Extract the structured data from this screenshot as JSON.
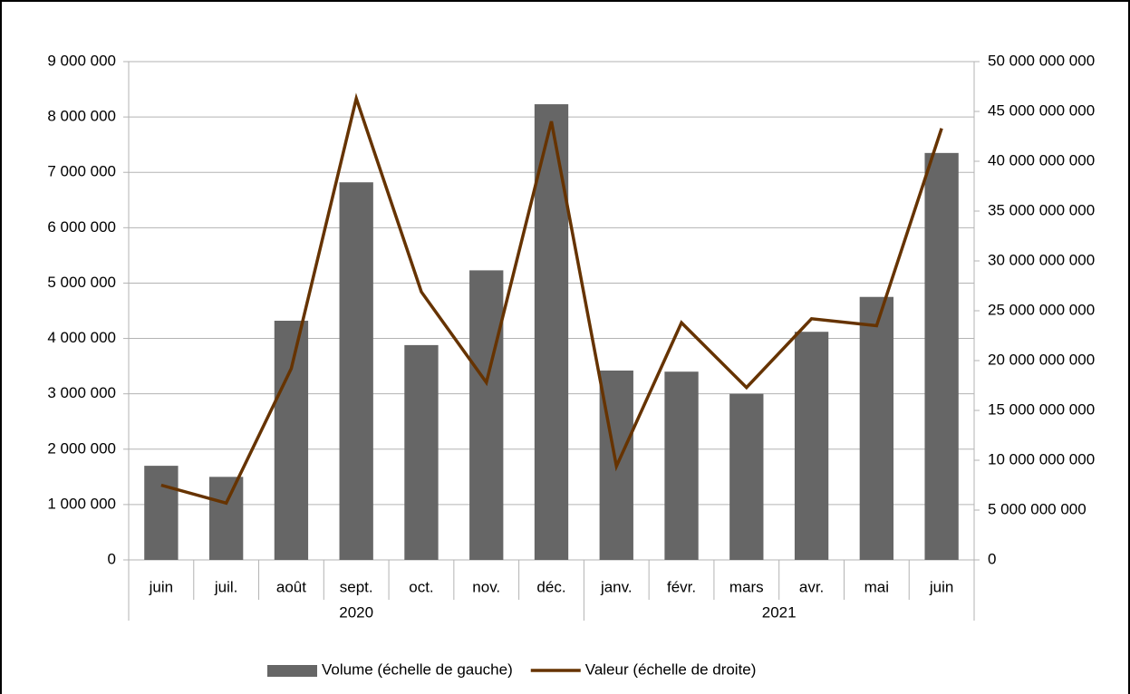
{
  "chart_data": {
    "type": "bar",
    "groups": [
      {
        "name": "2020",
        "categories": [
          "juin",
          "juil.",
          "août",
          "sept.",
          "oct.",
          "nov.",
          "déc."
        ]
      },
      {
        "name": "2021",
        "categories": [
          "janv.",
          "févr.",
          "mars",
          "avr.",
          "mai",
          "juin"
        ]
      }
    ],
    "series": [
      {
        "name": "Volume (échelle de gauche)",
        "type": "bar",
        "color": "#666666",
        "values": [
          1700000,
          1500000,
          4320000,
          6820000,
          3880000,
          5230000,
          8230000,
          3420000,
          3400000,
          3000000,
          4120000,
          4750000,
          7350000
        ]
      },
      {
        "name": "Valeur (échelle de droite)",
        "type": "line",
        "axis": "y2",
        "color": "#663300",
        "values": [
          7500000000,
          5700000000,
          19200000000,
          46300000000,
          26900000000,
          17800000000,
          44000000000,
          9400000000,
          23800000000,
          17300000000,
          24200000000,
          23500000000,
          43300000000
        ]
      }
    ],
    "ylim": [
      0,
      9000000
    ],
    "yticks": [
      0,
      {
        "value": 1000000,
        "label": "1 000 000"
      },
      {
        "value": 2000000,
        "label": "2 000 000"
      },
      {
        "value": 3000000,
        "label": "3 000 000"
      },
      {
        "value": 4000000,
        "label": "4 000 000"
      },
      {
        "value": 5000000,
        "label": "5 000 000"
      },
      {
        "value": 6000000,
        "label": "6 000 000"
      },
      {
        "value": 7000000,
        "label": "7 000 000"
      },
      {
        "value": 8000000,
        "label": "8 000 000"
      },
      {
        "value": 9000000,
        "label": "9 000 000"
      }
    ],
    "y2lim": [
      0,
      50000000000
    ],
    "y2ticks": [
      0,
      {
        "value": 5000000000,
        "label": "5 000 000 000"
      },
      {
        "value": 10000000000,
        "label": "10 000 000 000"
      },
      {
        "value": 15000000000,
        "label": "15 000 000 000"
      },
      {
        "value": 20000000000,
        "label": "20 000 000 000"
      },
      {
        "value": 25000000000,
        "label": "25 000 000 000"
      },
      {
        "value": 30000000000,
        "label": "30 000 000 000"
      },
      {
        "value": 35000000000,
        "label": "35 000 000 000"
      },
      {
        "value": 40000000000,
        "label": "40 000 000 000"
      },
      {
        "value": 45000000000,
        "label": "45 000 000 000"
      },
      {
        "value": 50000000000,
        "label": "50 000 000 000"
      }
    ],
    "grid": true,
    "legend": "bottom"
  }
}
